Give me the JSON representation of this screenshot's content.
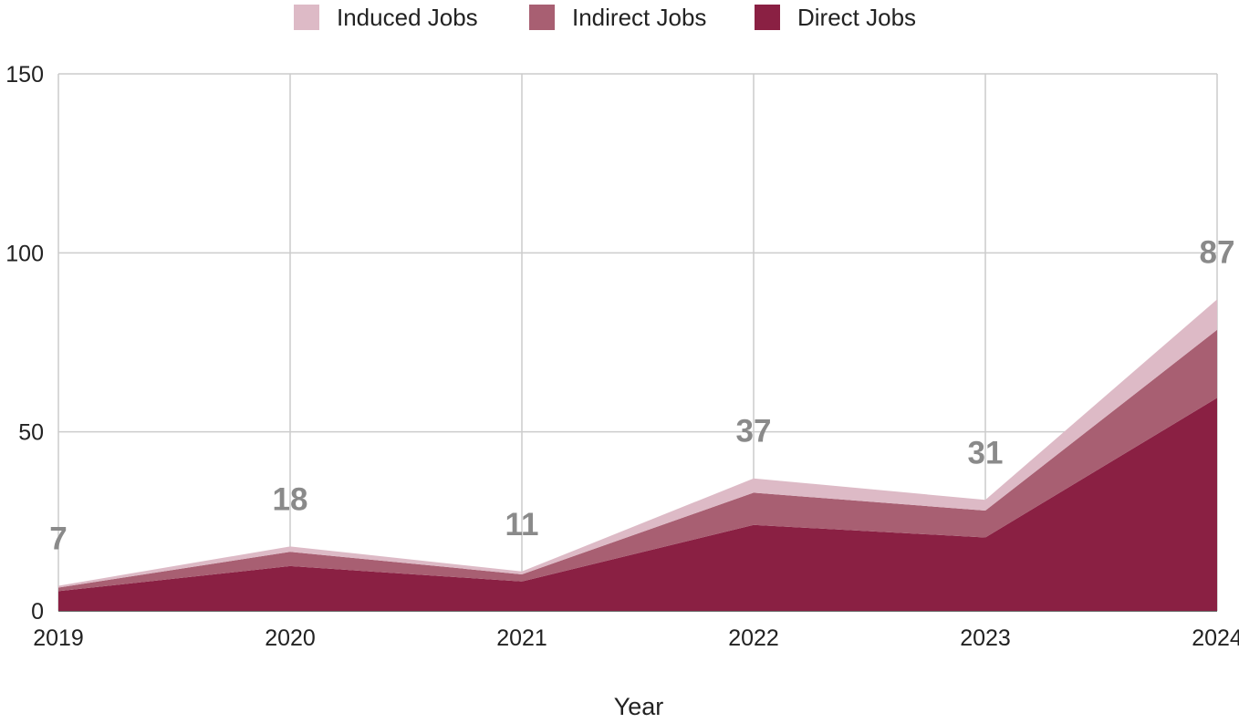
{
  "chart_data": {
    "type": "area",
    "stacked": true,
    "x": [
      "2019",
      "2020",
      "2021",
      "2022",
      "2023",
      "2024"
    ],
    "series": [
      {
        "name": "Direct Jobs",
        "values": [
          5.5,
          12.5,
          8.2,
          24,
          20.5,
          59.5
        ],
        "color": "#8A2043"
      },
      {
        "name": "Indirect Jobs",
        "values": [
          1,
          4,
          2,
          9,
          7.5,
          19
        ],
        "color": "#A85F72"
      },
      {
        "name": "Induced Jobs",
        "values": [
          0.5,
          1.5,
          0.8,
          4,
          3,
          8.5
        ],
        "color": "#DDBAC6"
      }
    ],
    "totals_labels": [
      "7",
      "18",
      "11",
      "37",
      "31",
      "87"
    ],
    "xlabel": "Year",
    "ylabel": "",
    "ylim": [
      0,
      150
    ],
    "yticks": [
      "0",
      "50",
      "100",
      "150"
    ],
    "grid": true,
    "legend_position": "top",
    "legend_order": [
      "Induced Jobs",
      "Indirect Jobs",
      "Direct Jobs"
    ]
  }
}
